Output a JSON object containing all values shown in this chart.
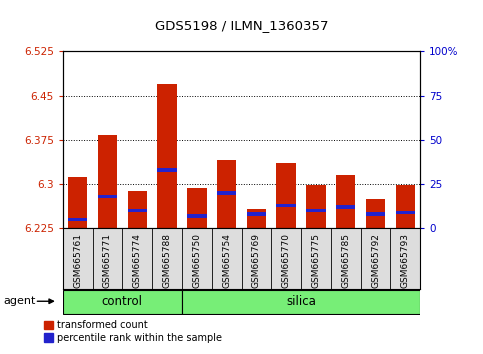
{
  "title": "GDS5198 / ILMN_1360357",
  "samples": [
    "GSM665761",
    "GSM665771",
    "GSM665774",
    "GSM665788",
    "GSM665750",
    "GSM665754",
    "GSM665769",
    "GSM665770",
    "GSM665775",
    "GSM665785",
    "GSM665792",
    "GSM665793"
  ],
  "groups": [
    "control",
    "control",
    "control",
    "control",
    "silica",
    "silica",
    "silica",
    "silica",
    "silica",
    "silica",
    "silica",
    "silica"
  ],
  "transformed_count": [
    6.312,
    6.383,
    6.289,
    6.47,
    6.293,
    6.34,
    6.258,
    6.335,
    6.298,
    6.315,
    6.275,
    6.298
  ],
  "percentile_rank": [
    5.0,
    18.0,
    10.0,
    33.0,
    7.0,
    20.0,
    8.0,
    13.0,
    10.0,
    12.0,
    8.0,
    9.0
  ],
  "baseline": 6.225,
  "ylim": [
    6.225,
    6.525
  ],
  "yticks_left": [
    6.225,
    6.3,
    6.375,
    6.45,
    6.525
  ],
  "yticks_right": [
    0,
    25,
    50,
    75,
    100
  ],
  "bar_color_red": "#cc2200",
  "bar_color_blue": "#2222cc",
  "group_color": "#77ee77",
  "agent_label": "agent",
  "legend_red": "transformed count",
  "legend_blue": "percentile rank within the sample",
  "left_tick_color": "#cc2200",
  "right_tick_color": "#0000cc",
  "fig_width": 4.83,
  "fig_height": 3.54,
  "dpi": 100
}
